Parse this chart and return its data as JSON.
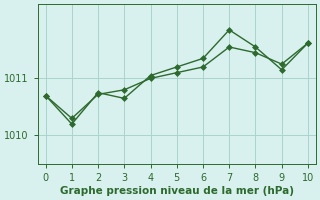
{
  "line1_x": [
    0,
    1,
    2,
    3,
    4,
    5,
    6,
    7,
    8,
    9,
    10
  ],
  "line1_y": [
    1010.7,
    1010.2,
    1010.75,
    1010.65,
    1011.05,
    1011.2,
    1011.35,
    1011.85,
    1011.55,
    1011.15,
    1011.62
  ],
  "line2_x": [
    0,
    1,
    2,
    3,
    4,
    5,
    6,
    7,
    8,
    9,
    10
  ],
  "line2_y": [
    1010.7,
    1010.3,
    1010.72,
    1010.8,
    1011.0,
    1011.1,
    1011.2,
    1011.55,
    1011.45,
    1011.25,
    1011.62
  ],
  "line_color": "#2d6a2d",
  "bg_color": "#d8f0ee",
  "grid_color": "#aad4cc",
  "xlabel": "Graphe pression niveau de la mer (hPa)",
  "xlim": [
    -0.3,
    10.3
  ],
  "ylim": [
    1009.5,
    1012.3
  ],
  "yticks": [
    1010,
    1011
  ],
  "xticks": [
    0,
    1,
    2,
    3,
    4,
    5,
    6,
    7,
    8,
    9,
    10
  ],
  "xlabel_fontsize": 7.5,
  "tick_fontsize": 7.0,
  "linewidth": 1.0,
  "markersize": 3.0
}
